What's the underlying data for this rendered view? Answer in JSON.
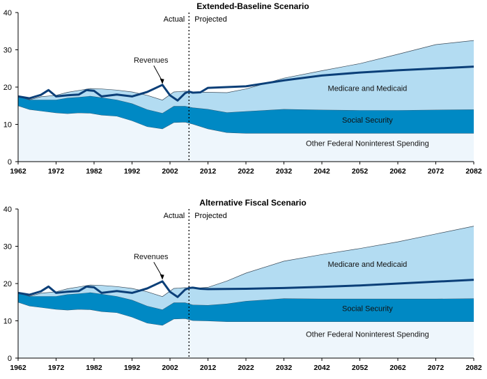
{
  "colors": {
    "other": "#eef6fc",
    "social_security": "#0089c4",
    "medicare": "#b3dcf2",
    "revenues": "#0b3f78",
    "outline": "#3a4b5a",
    "axis": "#000000"
  },
  "chart_data": [
    {
      "type": "area",
      "title": "Extended-Baseline Scenario",
      "xlabel": "",
      "ylabel": "",
      "xlim": [
        1962,
        2082
      ],
      "ylim": [
        0,
        40
      ],
      "x_ticks": [
        "1962",
        "1972",
        "1982",
        "1992",
        "2002",
        "2012",
        "2022",
        "2032",
        "2042",
        "2052",
        "2062",
        "2072",
        "2082"
      ],
      "y_ticks": [
        "0",
        "10",
        "20",
        "30",
        "40"
      ],
      "divider_year": 2007,
      "actual_label": "Actual",
      "projected_label": "Projected",
      "grid": false,
      "areas": [
        {
          "name": "Other Federal Noninterest Spending",
          "color_key": "other",
          "x": [
            1962,
            1965,
            1968,
            1972,
            1975,
            1978,
            1981,
            1984,
            1988,
            1992,
            1996,
            2000,
            2003,
            2006,
            2008,
            2012,
            2017,
            2022,
            2032,
            2042,
            2052,
            2062,
            2072,
            2082
          ],
          "values": [
            15,
            14,
            13.6,
            13.1,
            12.9,
            13.1,
            13,
            12.5,
            12.2,
            11,
            9.4,
            8.8,
            10.5,
            10.6,
            10.1,
            8.8,
            7.8,
            7.6,
            7.6,
            7.6,
            7.6,
            7.6,
            7.6,
            7.6
          ]
        },
        {
          "name": "Social Security",
          "color_key": "social_security",
          "x": [
            1962,
            1965,
            1968,
            1972,
            1975,
            1978,
            1981,
            1984,
            1988,
            1992,
            1996,
            2000,
            2003,
            2006,
            2008,
            2012,
            2017,
            2022,
            2032,
            2042,
            2052,
            2062,
            2072,
            2082
          ],
          "values": [
            2.5,
            2.6,
            3,
            3.5,
            4.2,
            4.2,
            4.6,
            4.7,
            4.4,
            4.6,
            4.6,
            4.2,
            4.4,
            4.3,
            4.4,
            5.3,
            5.4,
            5.9,
            6.5,
            6.3,
            6.2,
            6.2,
            6.3,
            6.4
          ]
        },
        {
          "name": "Medicare and Medicaid",
          "color_key": "medicare",
          "x": [
            1962,
            1965,
            1968,
            1972,
            1975,
            1978,
            1981,
            1984,
            1988,
            1992,
            1996,
            2000,
            2003,
            2006,
            2008,
            2012,
            2017,
            2022,
            2032,
            2042,
            2052,
            2062,
            2072,
            2082
          ],
          "values": [
            0,
            0,
            0.8,
            1.2,
            1.5,
            1.8,
            2,
            2.3,
            2.6,
            3.1,
            3.8,
            3.5,
            3.8,
            4,
            4.2,
            4.5,
            5.3,
            6,
            8.3,
            10.5,
            12.5,
            15,
            17.5,
            18.5
          ]
        }
      ],
      "series": [
        {
          "name": "Revenues",
          "color_key": "revenues",
          "x": [
            1962,
            1965,
            1968,
            1970,
            1972,
            1975,
            1978,
            1980,
            1982,
            1984,
            1988,
            1992,
            1996,
            2000,
            2002,
            2004,
            2006,
            2007,
            2008,
            2010,
            2012,
            2022,
            2032,
            2042,
            2052,
            2062,
            2072,
            2082
          ],
          "values": [
            17.5,
            17,
            17.9,
            19.2,
            17.5,
            17.8,
            18,
            19.2,
            19,
            17.5,
            18,
            17.5,
            18.7,
            20.6,
            17.8,
            16.4,
            18.4,
            18.8,
            18.5,
            18.6,
            19.8,
            20.2,
            21.8,
            23.1,
            23.9,
            24.5,
            25,
            25.5
          ]
        }
      ],
      "area_labels": [
        {
          "text": "Medicare and Medicaid",
          "x": 2054,
          "y": 19
        },
        {
          "text": "Social Security",
          "x": 2054,
          "y": 10.5
        },
        {
          "text": "Other Federal Noninterest Spending",
          "x": 2054,
          "y": 4.2
        }
      ],
      "revenue_label": {
        "text": "Revenues",
        "x": 1997,
        "y": 26.5,
        "arrow_to": [
          2000,
          20.8
        ]
      }
    },
    {
      "type": "area",
      "title": "Alternative Fiscal Scenario",
      "xlabel": "",
      "ylabel": "",
      "xlim": [
        1962,
        2082
      ],
      "ylim": [
        0,
        40
      ],
      "x_ticks": [
        "1962",
        "1972",
        "1982",
        "1992",
        "2002",
        "2012",
        "2022",
        "2032",
        "2042",
        "2052",
        "2062",
        "2072",
        "2082"
      ],
      "y_ticks": [
        "0",
        "10",
        "20",
        "30",
        "40"
      ],
      "divider_year": 2007,
      "actual_label": "Actual",
      "projected_label": "Projected",
      "grid": false,
      "areas": [
        {
          "name": "Other Federal Noninterest Spending",
          "color_key": "other",
          "x": [
            1962,
            1965,
            1968,
            1972,
            1975,
            1978,
            1981,
            1984,
            1988,
            1992,
            1996,
            2000,
            2003,
            2006,
            2008,
            2012,
            2017,
            2022,
            2032,
            2042,
            2052,
            2062,
            2072,
            2082
          ],
          "values": [
            15,
            14,
            13.6,
            13.1,
            12.9,
            13.1,
            13,
            12.5,
            12.2,
            11,
            9.4,
            8.8,
            10.5,
            10.6,
            10.1,
            10,
            9.8,
            9.8,
            9.8,
            9.8,
            9.8,
            9.8,
            9.8,
            9.8
          ]
        },
        {
          "name": "Social Security",
          "color_key": "social_security",
          "x": [
            1962,
            1965,
            1968,
            1972,
            1975,
            1978,
            1981,
            1984,
            1988,
            1992,
            1996,
            2000,
            2003,
            2006,
            2008,
            2012,
            2017,
            2022,
            2032,
            2042,
            2052,
            2062,
            2072,
            2082
          ],
          "values": [
            2.5,
            2.6,
            3,
            3.5,
            4.2,
            4.2,
            4.6,
            4.7,
            4.4,
            4.6,
            4.6,
            4.2,
            4.4,
            4.3,
            4.2,
            4.2,
            4.8,
            5.5,
            6.2,
            6.1,
            6.1,
            6.1,
            6.1,
            6.2
          ]
        },
        {
          "name": "Medicare and Medicaid",
          "color_key": "medicare",
          "x": [
            1962,
            1965,
            1968,
            1972,
            1975,
            1978,
            1981,
            1984,
            1988,
            1992,
            1996,
            2000,
            2003,
            2006,
            2008,
            2012,
            2017,
            2022,
            2032,
            2042,
            2052,
            2062,
            2072,
            2082
          ],
          "values": [
            0,
            0,
            0.8,
            1.2,
            1.5,
            1.8,
            2,
            2.3,
            2.6,
            3.1,
            3.8,
            3.5,
            3.8,
            4,
            4.4,
            4.8,
            6.1,
            7.5,
            10,
            11.9,
            13.5,
            15.3,
            17.4,
            19.4
          ]
        }
      ],
      "series": [
        {
          "name": "Revenues",
          "color_key": "revenues",
          "x": [
            1962,
            1965,
            1968,
            1970,
            1972,
            1975,
            1978,
            1980,
            1982,
            1984,
            1988,
            1992,
            1996,
            2000,
            2002,
            2004,
            2006,
            2007,
            2008,
            2010,
            2012,
            2022,
            2032,
            2042,
            2052,
            2062,
            2072,
            2082
          ],
          "values": [
            17.5,
            17,
            17.9,
            19.2,
            17.5,
            17.8,
            18,
            19.2,
            19,
            17.5,
            18,
            17.5,
            18.7,
            20.6,
            17.8,
            16.4,
            18.4,
            18.8,
            18.9,
            18.6,
            18.5,
            18.6,
            18.8,
            19.1,
            19.5,
            20,
            20.5,
            21
          ]
        }
      ],
      "area_labels": [
        {
          "text": "Medicare and Medicaid",
          "x": 2054,
          "y": 24.5
        },
        {
          "text": "Social Security",
          "x": 2054,
          "y": 12.6
        },
        {
          "text": "Other Federal Noninterest Spending",
          "x": 2054,
          "y": 5.7
        }
      ],
      "revenue_label": {
        "text": "Revenues",
        "x": 1997,
        "y": 26.5,
        "arrow_to": [
          2000,
          21
        ]
      }
    }
  ]
}
